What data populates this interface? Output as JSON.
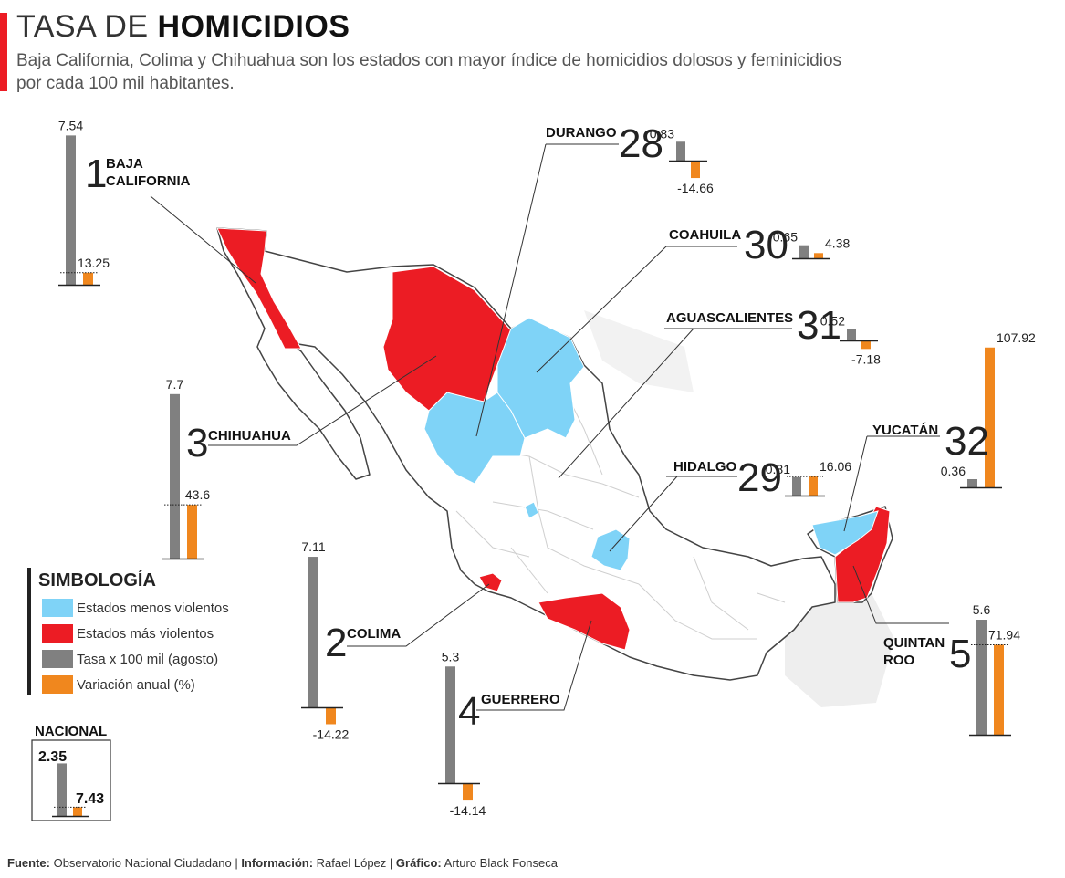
{
  "header": {
    "title_light": "TASA DE",
    "title_bold": "HOMICIDIOS",
    "subtitle_line1": "Baja California, Colima y Chihuahua son los estados con mayor índice de homicidios dolosos y feminicidios",
    "subtitle_line2": "por cada 100 mil habitantes."
  },
  "colors": {
    "least_violent": "#7fd3f7",
    "most_violent": "#ec1c24",
    "rate_bar": "#808080",
    "change_bar": "#f0871e",
    "map_land": "#ffffff",
    "map_border": "#cfcfcf"
  },
  "legend": {
    "title": "SIMBOLOGÍA",
    "items": [
      {
        "label": "Estados menos violentos",
        "color": "#7fd3f7"
      },
      {
        "label": "Estados más violentos",
        "color": "#ec1c24"
      },
      {
        "label": "Tasa x 100 mil (agosto)",
        "color": "#808080"
      },
      {
        "label": "Variación anual (%)",
        "color": "#f0871e"
      }
    ]
  },
  "chart_data": {
    "type": "bar",
    "series": [
      {
        "name": "Tasa x 100 mil (agosto)"
      },
      {
        "name": "Variación anual (%)"
      }
    ],
    "states": [
      {
        "rank": "1",
        "name_lines": [
          "BAJA",
          "CALIFORNIA"
        ],
        "rate": 7.54,
        "change": 13.25,
        "rate_label": "7.54",
        "change_label": "13.25",
        "category": "most_violent"
      },
      {
        "rank": "2",
        "name_lines": [
          "COLIMA"
        ],
        "rate": 7.11,
        "change": -14.22,
        "rate_label": "7.11",
        "change_label": "-14.22",
        "category": "most_violent"
      },
      {
        "rank": "3",
        "name_lines": [
          "CHIHUAHUA"
        ],
        "rate": 7.7,
        "change": 43.6,
        "rate_label": "7.7",
        "change_label": "43.6",
        "category": "most_violent"
      },
      {
        "rank": "4",
        "name_lines": [
          "GUERRERO"
        ],
        "rate": 5.3,
        "change": -14.14,
        "rate_label": "5.3",
        "change_label": "-14.14",
        "category": "most_violent"
      },
      {
        "rank": "5",
        "name_lines": [
          "QUINTAN",
          "ROO"
        ],
        "rate": 5.6,
        "change": 71.94,
        "rate_label": "5.6",
        "change_label": "71.94",
        "category": "most_violent"
      },
      {
        "rank": "28",
        "name_lines": [
          "DURANGO"
        ],
        "rate": 0.83,
        "change": -14.66,
        "rate_label": "0.83",
        "change_label": "-14.66",
        "category": "least_violent"
      },
      {
        "rank": "29",
        "name_lines": [
          "HIDALGO"
        ],
        "rate": 0.81,
        "change": 16.06,
        "rate_label": "0.81",
        "change_label": "16.06",
        "category": "least_violent"
      },
      {
        "rank": "30",
        "name_lines": [
          "COAHUILA"
        ],
        "rate": 0.65,
        "change": 4.38,
        "rate_label": "0.65",
        "change_label": "4.38",
        "category": "least_violent"
      },
      {
        "rank": "31",
        "name_lines": [
          "AGUASCALIENTES"
        ],
        "rate": 0.52,
        "change": -7.18,
        "rate_label": "0.52",
        "change_label": "-7.18",
        "category": "least_violent"
      },
      {
        "rank": "32",
        "name_lines": [
          "YUCATÁN"
        ],
        "rate": 0.36,
        "change": 107.92,
        "rate_label": "0.36",
        "change_label": "107.92",
        "category": "least_violent"
      }
    ],
    "national": {
      "name": "NACIONAL",
      "rate": 2.35,
      "change": 7.43,
      "rate_label": "2.35",
      "change_label": "7.43"
    }
  },
  "footer": {
    "source_label": "Fuente:",
    "source": "Observatorio Nacional Ciudadano",
    "info_label": "Información:",
    "info": "Rafael López",
    "graphic_label": "Gráfico:",
    "graphic": "Arturo Black Fonseca"
  }
}
